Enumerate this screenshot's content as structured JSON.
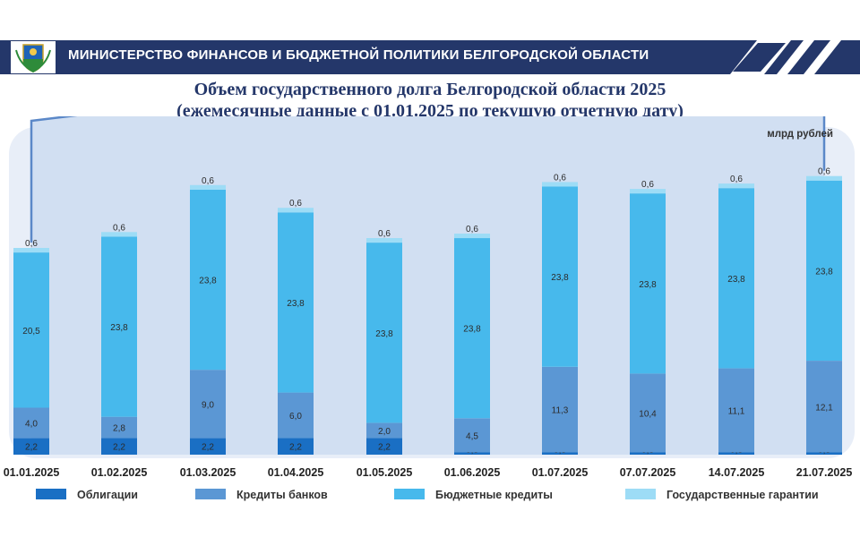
{
  "header": {
    "text": "МИНИСТЕРСТВО ФИНАНСОВ И БЮДЖЕТНОЙ ПОЛИТИКИ БЕЛГОРОДСКОЙ ОБЛАСТИ",
    "bar_color": "#24376a"
  },
  "title": {
    "line1": "Объем государственного долга Белгородской области 2025",
    "line2": "(ежемесячные данные с 01.01.2025 по текущую отчетную дату)"
  },
  "chart_data": {
    "type": "bar",
    "stacked": true,
    "unit_label": "млрд рублей",
    "categories": [
      "01.01.2025",
      "01.02.2025",
      "01.03.2025",
      "01.04.2025",
      "01.05.2025",
      "01.06.2025",
      "01.07.2025",
      "07.07.2025",
      "14.07.2025",
      "21.07.2025"
    ],
    "series": [
      {
        "name": "Облигации",
        "color": "#1a6fc4",
        "values": [
          2.2,
          2.2,
          2.2,
          2.2,
          2.2,
          0.3,
          0.3,
          0.3,
          0.3,
          0.3
        ],
        "labels": [
          "2,2",
          "2,2",
          "2,2",
          "2,2",
          "2,2",
          "0,3",
          "0,3",
          "0,3",
          "0,3",
          "0,3"
        ]
      },
      {
        "name": "Кредиты банков",
        "color": "#5b97d4",
        "values": [
          4.0,
          2.8,
          9.0,
          6.0,
          2.0,
          4.5,
          11.3,
          10.4,
          11.1,
          12.1
        ],
        "labels": [
          "4,0",
          "2,8",
          "9,0",
          "6,0",
          "2,0",
          "4,5",
          "11,3",
          "10,4",
          "11,1",
          "12,1"
        ]
      },
      {
        "name": "Бюджетные кредиты",
        "color": "#47b9ec",
        "values": [
          20.5,
          23.8,
          23.8,
          23.8,
          23.8,
          23.8,
          23.8,
          23.8,
          23.8,
          23.8
        ],
        "labels": [
          "20,5",
          "23,8",
          "23,8",
          "23,8",
          "23,8",
          "23,8",
          "23,8",
          "23,8",
          "23,8",
          "23,8"
        ]
      },
      {
        "name": "Государственные гарантии",
        "color": "#9ddcf6",
        "values": [
          0.6,
          0.6,
          0.6,
          0.6,
          0.6,
          0.6,
          0.6,
          0.6,
          0.6,
          0.6
        ],
        "labels": [
          "0,6",
          "0,6",
          "0,6",
          "0,6",
          "0,6",
          "0,6",
          "0,6",
          "0,6",
          "0,6",
          "0,6"
        ]
      }
    ],
    "total_line_color": "#5b88c8",
    "grid": false,
    "legend_position": "bottom"
  }
}
